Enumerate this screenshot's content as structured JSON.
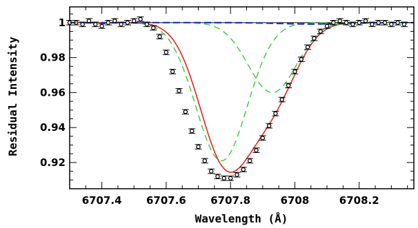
{
  "chart_data": {
    "type": "line",
    "title": "",
    "xlabel": "Wavelength (Å)",
    "ylabel": "Residual Intensity",
    "xlim": [
      6707.3,
      6708.37
    ],
    "ylim": [
      0.905,
      1.009
    ],
    "x_ticks": [
      {
        "value": 6707.4,
        "label": "6707.4"
      },
      {
        "value": 6707.6,
        "label": "6707.6"
      },
      {
        "value": 6707.8,
        "label": "6707.8"
      },
      {
        "value": 6708.0,
        "label": "6708"
      },
      {
        "value": 6708.2,
        "label": "6708.2"
      }
    ],
    "y_ticks": [
      {
        "value": 0.92,
        "label": "0.92"
      },
      {
        "value": 0.94,
        "label": "0.94"
      },
      {
        "value": 0.96,
        "label": "0.96"
      },
      {
        "value": 0.98,
        "label": "0.98"
      },
      {
        "value": 1.0,
        "label": "1"
      }
    ],
    "observed": {
      "x": [
        6707.3,
        6707.32,
        6707.34,
        6707.36,
        6707.38,
        6707.4,
        6707.42,
        6707.44,
        6707.46,
        6707.48,
        6707.5,
        6707.52,
        6707.54,
        6707.56,
        6707.58,
        6707.6,
        6707.62,
        6707.64,
        6707.66,
        6707.68,
        6707.7,
        6707.72,
        6707.74,
        6707.76,
        6707.78,
        6707.8,
        6707.82,
        6707.84,
        6707.86,
        6707.88,
        6707.9,
        6707.92,
        6707.94,
        6707.96,
        6707.98,
        6708.0,
        6708.02,
        6708.04,
        6708.06,
        6708.08,
        6708.1,
        6708.12,
        6708.14,
        6708.16,
        6708.18,
        6708.2,
        6708.22,
        6708.24,
        6708.26,
        6708.28,
        6708.3,
        6708.32,
        6708.34
      ],
      "y": [
        1.0,
        1.0,
        0.999,
        1.001,
        0.999,
        0.998,
        1.0,
        1.001,
        0.999,
        1.0,
        1.001,
        1.002,
        0.999,
        0.997,
        0.992,
        0.983,
        0.972,
        0.961,
        0.949,
        0.938,
        0.929,
        0.921,
        0.915,
        0.912,
        0.911,
        0.911,
        0.913,
        0.916,
        0.921,
        0.927,
        0.934,
        0.941,
        0.948,
        0.956,
        0.964,
        0.972,
        0.979,
        0.986,
        0.991,
        0.995,
        0.998,
        1.0,
        1.001,
        1.0,
        0.999,
        1.0,
        1.001,
        0.999,
        1.0,
        1.0,
        0.999,
        1.0,
        0.999
      ],
      "err": 0.0013
    },
    "series": [
      {
        "kind": "fit",
        "color": "#e8231c",
        "x0": 6707.785,
        "depth": 0.079,
        "sigma": 0.08,
        "x0b": 6707.935,
        "depthb": 0.04,
        "sigmab": 0.075
      },
      {
        "kind": "component",
        "color": "#36c936",
        "x0": 6707.772,
        "depth": 0.079,
        "sigma": 0.08
      },
      {
        "kind": "component",
        "color": "#36c936",
        "x0": 6707.93,
        "depth": 0.04,
        "sigma": 0.075
      },
      {
        "kind": "component",
        "color": "#1a2fc9",
        "x0": 6708.05,
        "depth": 0.0008,
        "sigma": 0.1
      }
    ],
    "continuum": 1.0,
    "grid": false,
    "legend": "none"
  }
}
